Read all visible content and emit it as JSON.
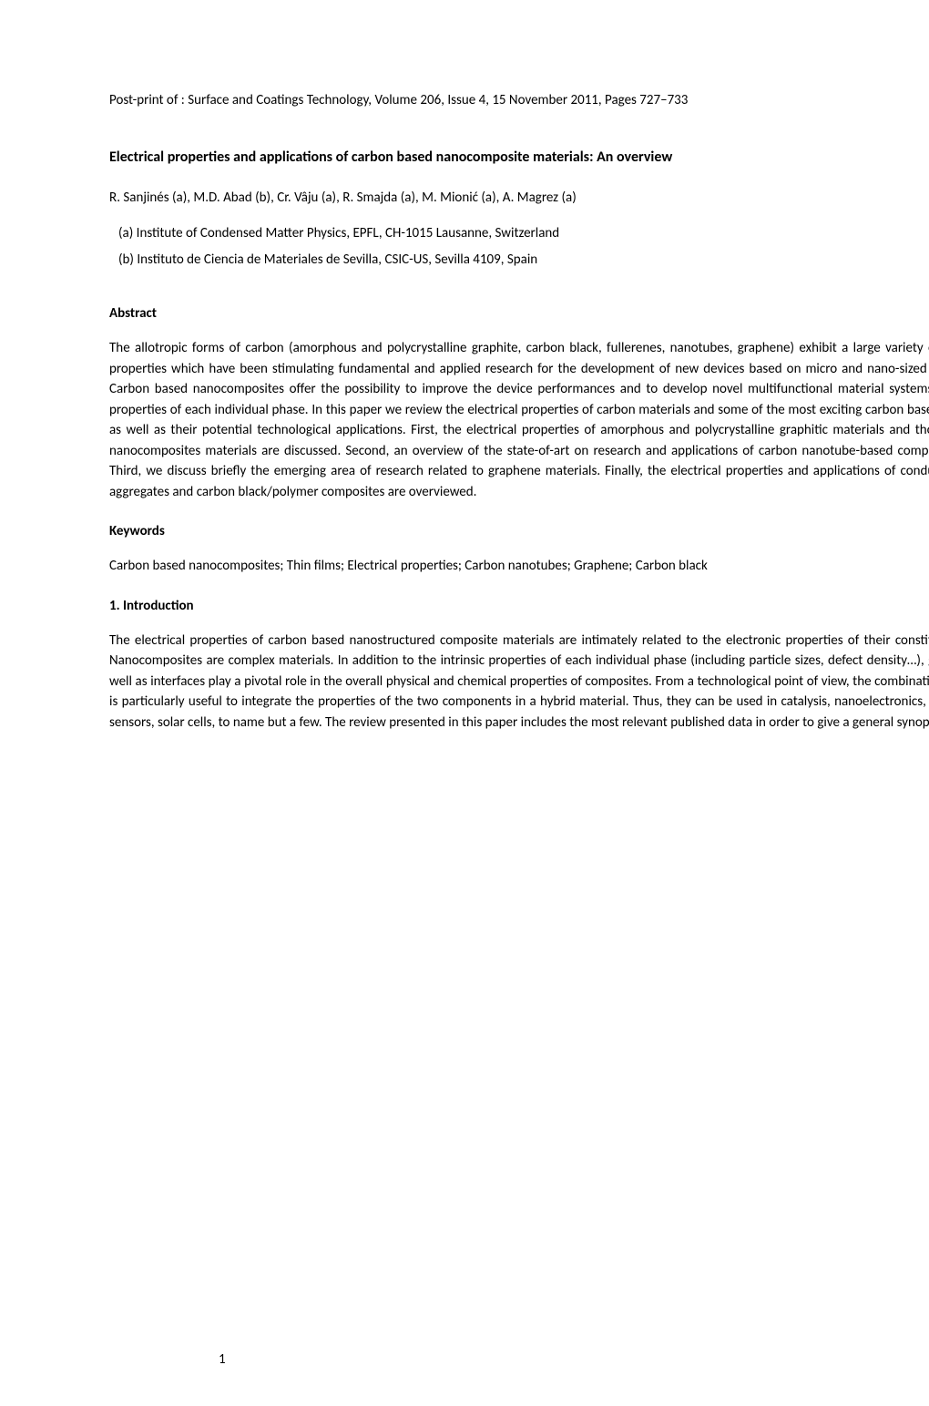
{
  "postprint": "Post-print of :   Surface and Coatings Technology, Volume 206, Issue 4, 15 November 2011, Pages 727–733",
  "title": "Electrical properties and applications of carbon based nanocomposite materials: An overview",
  "authors": "R. Sanjinés (a),    M.D. Abad (b),  Cr. Vâju (a),   R. Smajda (a),  M. Mionić (a),  A. Magrez (a)",
  "affiliations": [
    "(a)  Institute of Condensed Matter Physics, EPFL, CH-1015 Lausanne, Switzerland",
    "(b) Instituto de Ciencia de Materiales de Sevilla, CSIC-US, Sevilla 4109, Spain"
  ],
  "sections": {
    "abstract": {
      "heading": "Abstract",
      "text": "The allotropic forms of carbon (amorphous and polycrystalline graphite, carbon black, fullerenes, nanotubes, graphene) exhibit a large variety of charge transport properties which have been stimulating fundamental and applied research for the development of new devices based on micro and nano-sized electronic systems. Carbon based nanocomposites offer the possibility to improve the device performances and to develop novel multifunctional material systems by combining the properties of each individual phase. In this paper we review the electrical properties of carbon materials and some of the most exciting carbon based nanocomposites, as well as their potential technological applications. First, the electrical properties of amorphous and polycrystalline graphitic materials and those of their related nanocomposites materials are discussed. Second, an overview of the state-of-art on research and applications of carbon nanotube-based composites is presented. Third, we discuss briefly the emerging area of research related to graphene materials. Finally, the electrical properties and applications of conducting carbon black aggregates and carbon black/polymer composites are overviewed."
    },
    "keywords": {
      "heading": "Keywords",
      "text": "Carbon based nanocomposites; Thin films; Electrical properties;  Carbon nanotubes;   Graphene;  Carbon black"
    },
    "introduction": {
      "heading": "1. Introduction",
      "text": "The electrical properties of carbon based nanostructured composite materials are intimately related to the electronic properties of their constituting components. Nanocomposites are complex materials. In addition to the intrinsic properties of each individual phase (including particle sizes, defect density…), grain boundaries as well as interfaces play a pivotal role in the overall physical and chemical properties of composites. From a technological point of view, the combination of two materials is particularly useful to integrate the properties of the two components in a hybrid material. Thus, they can be used in catalysis, nanoelectronics, energy storage, gas sensors, solar cells, to name but a few. The review presented in this paper includes the most relevant published data in order to give a general synopsis on the electrical"
    }
  },
  "page_number": "1",
  "colors": {
    "background": "#ffffff",
    "text": "#000000"
  },
  "typography": {
    "body_fontsize_pt": 11,
    "title_fontsize_pt": 12,
    "font_family": "Calibri"
  }
}
